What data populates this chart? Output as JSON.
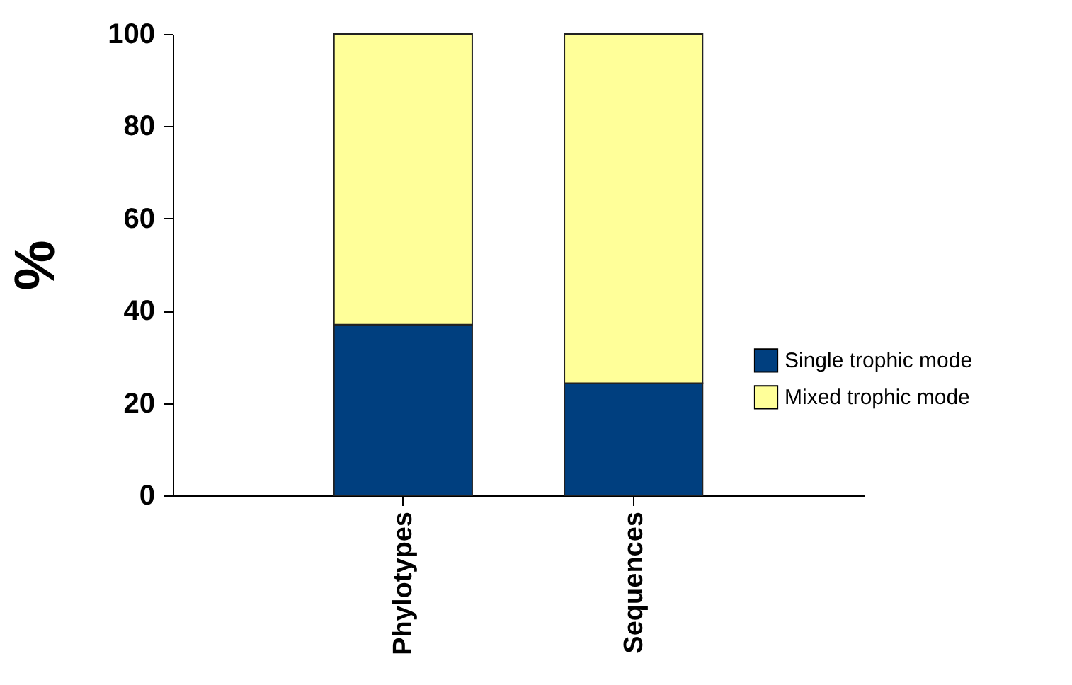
{
  "chart_data": {
    "type": "bar",
    "stacked": true,
    "ylabel": "%",
    "categories": [
      "Phylotypes",
      "Sequences"
    ],
    "series": [
      {
        "name": "Single trophic mode",
        "color": "#003f7f",
        "values": [
          37.0,
          24.3
        ]
      },
      {
        "name": "Mixed trophic mode",
        "color": "#ffff99",
        "values": [
          63.0,
          75.7
        ]
      }
    ],
    "ylim": [
      0,
      100
    ],
    "yticks": [
      0,
      20,
      40,
      60,
      80,
      100
    ],
    "legend": "right",
    "grid": false
  }
}
